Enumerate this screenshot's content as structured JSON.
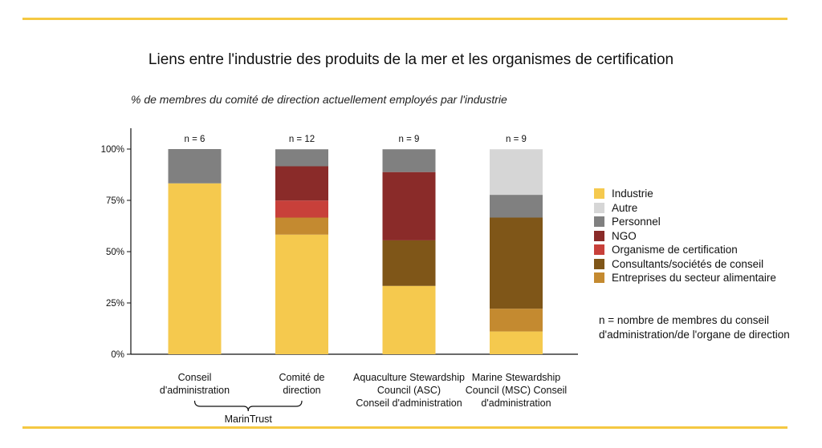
{
  "title": "Liens entre l'industrie des produits de la mer et les organismes de certification",
  "subtitle": "% de membres du comité de direction actuellement employés par l'industrie",
  "note_lines": [
    "n = nombre de membres du conseil",
    "d'administration/de l'organe de direction"
  ],
  "group_label": "MarinTrust",
  "colors": {
    "rule": "#f5c842",
    "Industrie": "#f5c94e",
    "Autre": "#d6d6d6",
    "Personnel": "#808080",
    "NGO": "#8a2b29",
    "Organisme de certification": "#c8403a",
    "Consultants/sociétés de conseil": "#7f5618",
    "Entreprises du secteur alimentaire": "#c48a30"
  },
  "chart_data": {
    "type": "bar",
    "stacked": true,
    "title": "Liens entre l'industrie des produits de la mer et les organismes de certification",
    "subtitle": "% de membres du comité de direction actuellement employés par l'industrie",
    "ylim": [
      0,
      100
    ],
    "yticks": [
      "0%",
      "25%",
      "50%",
      "75%",
      "100%"
    ],
    "categories": [
      [
        "Conseil",
        "d'administration"
      ],
      [
        "Comité  de",
        "direction"
      ],
      [
        "Aquaculture Stewardship",
        "Council (ASC)",
        "Conseil d'administration"
      ],
      [
        "Marine Stewardship",
        "Council (MSC) Conseil",
        "d'administration"
      ]
    ],
    "n_labels": [
      "n = 6",
      "n = 12",
      "n = 9",
      "n = 9"
    ],
    "series": [
      {
        "name": "Industrie",
        "values": [
          83.3,
          58.3,
          33.3,
          11.1
        ]
      },
      {
        "name": "Entreprises du secteur alimentaire",
        "values": [
          0,
          8.3,
          0,
          11.1
        ]
      },
      {
        "name": "Consultants/sociétés de conseil",
        "values": [
          0,
          0,
          22.2,
          44.4
        ]
      },
      {
        "name": "Organisme de certification",
        "values": [
          0,
          8.3,
          0,
          0
        ]
      },
      {
        "name": "NGO",
        "values": [
          0,
          16.7,
          33.3,
          0
        ]
      },
      {
        "name": "Personnel",
        "values": [
          16.7,
          8.3,
          11.1,
          11.1
        ]
      },
      {
        "name": "Autre",
        "values": [
          0,
          0,
          0,
          22.2
        ]
      }
    ],
    "legend_order": [
      "Industrie",
      "Autre",
      "Personnel",
      "NGO",
      "Organisme de certification",
      "Consultants/sociétés de conseil",
      "Entreprises du secteur alimentaire"
    ],
    "legend_position": "right",
    "grid": false
  }
}
